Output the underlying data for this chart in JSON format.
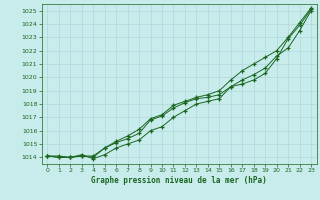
{
  "bg_color": "#c8ecec",
  "grid_color": "#b0d8d8",
  "line_color": "#1a6620",
  "text_color": "#1a6620",
  "xlabel": "Graphe pression niveau de la mer (hPa)",
  "ylim": [
    1013.5,
    1025.5
  ],
  "xlim": [
    -0.5,
    23.5
  ],
  "yticks": [
    1014,
    1015,
    1016,
    1017,
    1018,
    1019,
    1020,
    1021,
    1022,
    1023,
    1024,
    1025
  ],
  "xticks": [
    0,
    1,
    2,
    3,
    4,
    5,
    6,
    7,
    8,
    9,
    10,
    11,
    12,
    13,
    14,
    15,
    16,
    17,
    18,
    19,
    20,
    21,
    22,
    23
  ],
  "series1": [
    1014.1,
    1014.1,
    1014.0,
    1014.2,
    1013.9,
    1014.2,
    1014.7,
    1015.0,
    1015.3,
    1016.0,
    1016.3,
    1017.0,
    1017.5,
    1018.0,
    1018.2,
    1018.4,
    1019.3,
    1019.5,
    1019.8,
    1020.3,
    1021.4,
    1022.9,
    1023.9,
    1025.1
  ],
  "series2": [
    1014.1,
    1014.0,
    1014.0,
    1014.1,
    1014.1,
    1014.7,
    1015.1,
    1015.4,
    1015.8,
    1016.8,
    1017.1,
    1017.7,
    1018.1,
    1018.4,
    1018.5,
    1018.7,
    1019.3,
    1019.8,
    1020.2,
    1020.7,
    1021.6,
    1022.2,
    1023.5,
    1025.0
  ],
  "series3": [
    1014.1,
    1014.0,
    1014.0,
    1014.1,
    1014.0,
    1014.7,
    1015.2,
    1015.6,
    1016.1,
    1016.9,
    1017.2,
    1017.9,
    1018.2,
    1018.5,
    1018.7,
    1019.0,
    1019.8,
    1020.5,
    1021.0,
    1021.5,
    1022.0,
    1023.0,
    1024.1,
    1025.2
  ]
}
